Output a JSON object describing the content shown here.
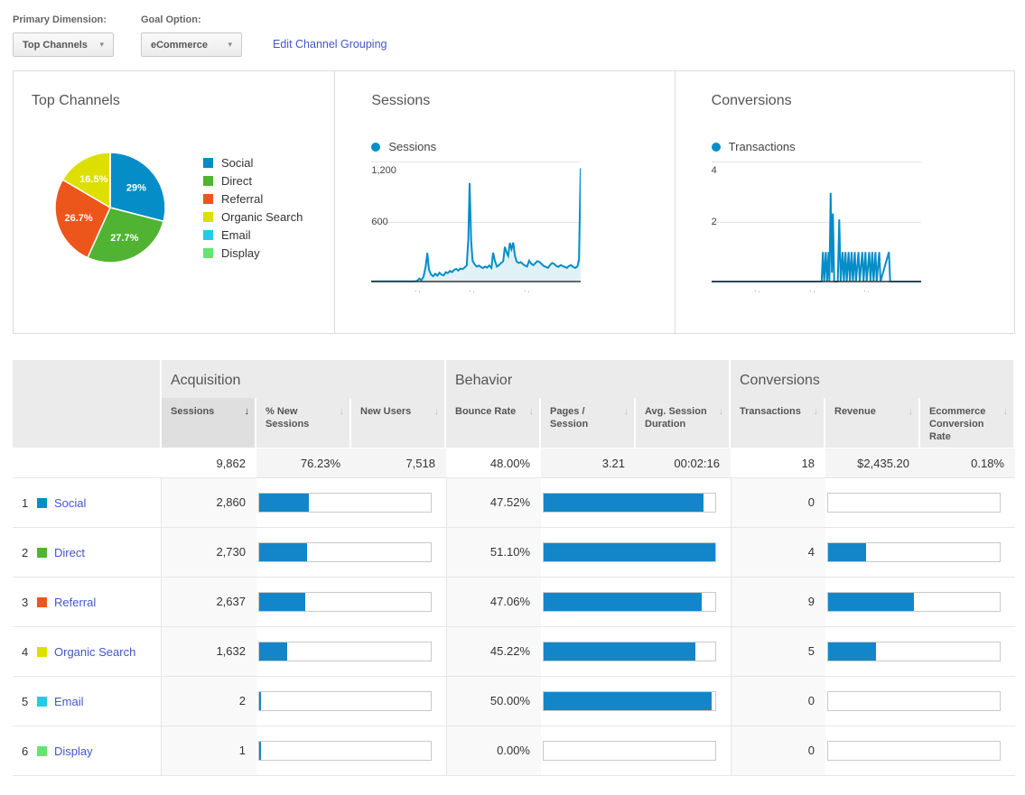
{
  "controls": {
    "primary_dimension_label": "Primary Dimension:",
    "primary_dimension_value": "Top Channels",
    "goal_option_label": "Goal Option:",
    "goal_option_value": "eCommerce",
    "edit_link": "Edit Channel Grouping",
    "caret": "▾"
  },
  "colors": {
    "chart_blue": "#058dc7",
    "bar_blue": "#1386c9",
    "link_blue": "#4356cb",
    "palette": [
      "#058dc7",
      "#50b432",
      "#ed561b",
      "#dddf00",
      "#24cbe5",
      "#64e572"
    ]
  },
  "cards": {
    "top_channels": {
      "title": "Top Channels"
    },
    "sessions": {
      "title": "Sessions",
      "legend": "Sessions",
      "y_ticks": [
        "1,200",
        "600"
      ],
      "x_ticks": [
        ".·",
        ".·",
        ".·"
      ]
    },
    "conversions": {
      "title": "Conversions",
      "legend": "Transactions",
      "y_ticks": [
        "4",
        "2"
      ],
      "x_ticks": [
        ".·",
        ".·",
        ".·"
      ]
    }
  },
  "chart_data": [
    {
      "type": "pie",
      "title": "Top Channels",
      "labels": [
        "Social",
        "Direct",
        "Referral",
        "Organic Search",
        "Email",
        "Display"
      ],
      "values": [
        29.0,
        27.7,
        26.7,
        16.5,
        0.02,
        0.01
      ],
      "slice_labels": [
        "29%",
        "27.7%",
        "26.7%",
        "16.5%",
        "",
        ""
      ],
      "colors": [
        "#058dc7",
        "#50b432",
        "#ed561b",
        "#dddf00",
        "#24cbe5",
        "#64e572"
      ],
      "legend_position": "right"
    },
    {
      "type": "area",
      "title": "Sessions",
      "xlabel": "",
      "ylabel": "Sessions",
      "ylim": [
        0,
        1200
      ],
      "yticks": [
        600,
        1200
      ],
      "grid": true,
      "series": [
        {
          "name": "Sessions",
          "color": "#058dc7",
          "points": [
            [
              0,
              2
            ],
            [
              4,
              2
            ],
            [
              8,
              2
            ],
            [
              12,
              2
            ],
            [
              16,
              2
            ],
            [
              19,
              2
            ],
            [
              21,
              3
            ],
            [
              22,
              8
            ],
            [
              23,
              30
            ],
            [
              24,
              15
            ],
            [
              25,
              50
            ],
            [
              26,
              150
            ],
            [
              26.8,
              290
            ],
            [
              27.6,
              120
            ],
            [
              28.6,
              70
            ],
            [
              29.6,
              55
            ],
            [
              30.6,
              80
            ],
            [
              31.6,
              60
            ],
            [
              32.6,
              90
            ],
            [
              33.6,
              70
            ],
            [
              34.6,
              62
            ],
            [
              35.6,
              95
            ],
            [
              36.6,
              85
            ],
            [
              37.6,
              108
            ],
            [
              38.6,
              95
            ],
            [
              39.6,
              118
            ],
            [
              40.6,
              128
            ],
            [
              41.6,
              112
            ],
            [
              42.6,
              132
            ],
            [
              43.6,
              126
            ],
            [
              44.6,
              142
            ],
            [
              45.6,
              165
            ],
            [
              46.4,
              430
            ],
            [
              47,
              1000
            ],
            [
              47.7,
              420
            ],
            [
              48.4,
              210
            ],
            [
              49.4,
              175
            ],
            [
              50.4,
              152
            ],
            [
              51.4,
              162
            ],
            [
              52.4,
              147
            ],
            [
              53.4,
              137
            ],
            [
              54.4,
              152
            ],
            [
              55.4,
              142
            ],
            [
              56.4,
              163
            ],
            [
              57.4,
              138
            ],
            [
              58.2,
              292
            ],
            [
              59,
              215
            ],
            [
              60,
              152
            ],
            [
              61,
              167
            ],
            [
              62,
              188
            ],
            [
              63,
              205
            ],
            [
              63.8,
              352
            ],
            [
              64.6,
              298
            ],
            [
              65.4,
              262
            ],
            [
              66.2,
              392
            ],
            [
              67,
              330
            ],
            [
              67.8,
              396
            ],
            [
              68.6,
              262
            ],
            [
              69.4,
              205
            ],
            [
              70.4,
              188
            ],
            [
              71.4,
              198
            ],
            [
              72.4,
              178
            ],
            [
              73.4,
              162
            ],
            [
              74.4,
              152
            ],
            [
              75.4,
              212
            ],
            [
              76.4,
              182
            ],
            [
              77.4,
              167
            ],
            [
              78.4,
              188
            ],
            [
              79.4,
              208
            ],
            [
              80.4,
              198
            ],
            [
              81.4,
              178
            ],
            [
              82.4,
              158
            ],
            [
              83.4,
              148
            ],
            [
              84.4,
              138
            ],
            [
              85.4,
              168
            ],
            [
              86.4,
              188
            ],
            [
              87.4,
              178
            ],
            [
              88.4,
              158
            ],
            [
              89.4,
              148
            ],
            [
              90.4,
              168
            ],
            [
              91.4,
              158
            ],
            [
              92.4,
              148
            ],
            [
              93.4,
              138
            ],
            [
              94.4,
              158
            ],
            [
              95.4,
              168
            ],
            [
              96.4,
              148
            ],
            [
              97.4,
              138
            ],
            [
              98.4,
              152
            ],
            [
              99.2,
              220
            ],
            [
              100,
              1150
            ]
          ]
        }
      ]
    },
    {
      "type": "line",
      "title": "Conversions",
      "xlabel": "",
      "ylabel": "Transactions",
      "ylim": [
        0,
        4
      ],
      "yticks": [
        2,
        4
      ],
      "grid": true,
      "series": [
        {
          "name": "Transactions",
          "color": "#058dc7",
          "points": [
            [
              0,
              0
            ],
            [
              48,
              0
            ],
            [
              52.5,
              0
            ],
            [
              53.1,
              1
            ],
            [
              53.7,
              0
            ],
            [
              54.5,
              1
            ],
            [
              55.1,
              0
            ],
            [
              55.8,
              1
            ],
            [
              56.2,
              0
            ],
            [
              56.8,
              3
            ],
            [
              57.4,
              0.3
            ],
            [
              57.9,
              2.3
            ],
            [
              58.5,
              0
            ],
            [
              60.2,
              0
            ],
            [
              60.9,
              2.1
            ],
            [
              61.6,
              0
            ],
            [
              62.5,
              1
            ],
            [
              63.1,
              0
            ],
            [
              63.9,
              1
            ],
            [
              64.5,
              0
            ],
            [
              65.4,
              1
            ],
            [
              66,
              0
            ],
            [
              66.8,
              1
            ],
            [
              67.4,
              0
            ],
            [
              68.3,
              1
            ],
            [
              68.9,
              0
            ],
            [
              70.1,
              1
            ],
            [
              70.7,
              0
            ],
            [
              71.9,
              1
            ],
            [
              72.5,
              0
            ],
            [
              73.4,
              1
            ],
            [
              74,
              0
            ],
            [
              75.2,
              1
            ],
            [
              75.8,
              0
            ],
            [
              76.7,
              1
            ],
            [
              77.3,
              0
            ],
            [
              78.2,
              1
            ],
            [
              78.8,
              0
            ],
            [
              80,
              1
            ],
            [
              80.6,
              0
            ],
            [
              84.6,
              1
            ],
            [
              85.2,
              0
            ],
            [
              100,
              0
            ]
          ]
        }
      ]
    }
  ],
  "table": {
    "sort_arrow": "↓",
    "groups": [
      {
        "label": "Acquisition"
      },
      {
        "label": "Behavior"
      },
      {
        "label": "Conversions"
      }
    ],
    "columns": [
      {
        "label": "Sessions",
        "sorted": true
      },
      {
        "label": "% New Sessions",
        "sorted": false
      },
      {
        "label": "New Users",
        "sorted": false
      },
      {
        "label": "Bounce Rate",
        "sorted": false
      },
      {
        "label": "Pages / Session",
        "sorted": false
      },
      {
        "label": "Avg. Session Duration",
        "sorted": false
      },
      {
        "label": "Transactions",
        "sorted": false
      },
      {
        "label": "Revenue",
        "sorted": false
      },
      {
        "label": "Ecommerce Conversion Rate",
        "sorted": false
      }
    ],
    "totals": [
      "9,862",
      "76.23%",
      "7,518",
      "48.00%",
      "3.21",
      "00:02:16",
      "18",
      "$2,435.20",
      "0.18%"
    ],
    "rows": [
      {
        "rank": "1",
        "channel": "Social",
        "color": "#058dc7",
        "sessions": "2,860",
        "sessions_pct": 29.0,
        "bounce": "47.52%",
        "bounce_pct": 93.0,
        "transactions": "0",
        "trans_pct": 0
      },
      {
        "rank": "2",
        "channel": "Direct",
        "color": "#50b432",
        "sessions": "2,730",
        "sessions_pct": 27.7,
        "bounce": "51.10%",
        "bounce_pct": 100,
        "transactions": "4",
        "trans_pct": 22.2
      },
      {
        "rank": "3",
        "channel": "Referral",
        "color": "#ed561b",
        "sessions": "2,637",
        "sessions_pct": 26.7,
        "bounce": "47.06%",
        "bounce_pct": 92.1,
        "transactions": "9",
        "trans_pct": 50
      },
      {
        "rank": "4",
        "channel": "Organic Search",
        "color": "#dddf00",
        "sessions": "1,632",
        "sessions_pct": 16.5,
        "bounce": "45.22%",
        "bounce_pct": 88.5,
        "transactions": "5",
        "trans_pct": 27.8
      },
      {
        "rank": "5",
        "channel": "Email",
        "color": "#24cbe5",
        "sessions": "2",
        "sessions_pct": 0.5,
        "bounce": "50.00%",
        "bounce_pct": 97.8,
        "transactions": "0",
        "trans_pct": 0
      },
      {
        "rank": "6",
        "channel": "Display",
        "color": "#64e572",
        "sessions": "1",
        "sessions_pct": 0.5,
        "bounce": "0.00%",
        "bounce_pct": 0,
        "transactions": "0",
        "trans_pct": 0
      }
    ]
  }
}
